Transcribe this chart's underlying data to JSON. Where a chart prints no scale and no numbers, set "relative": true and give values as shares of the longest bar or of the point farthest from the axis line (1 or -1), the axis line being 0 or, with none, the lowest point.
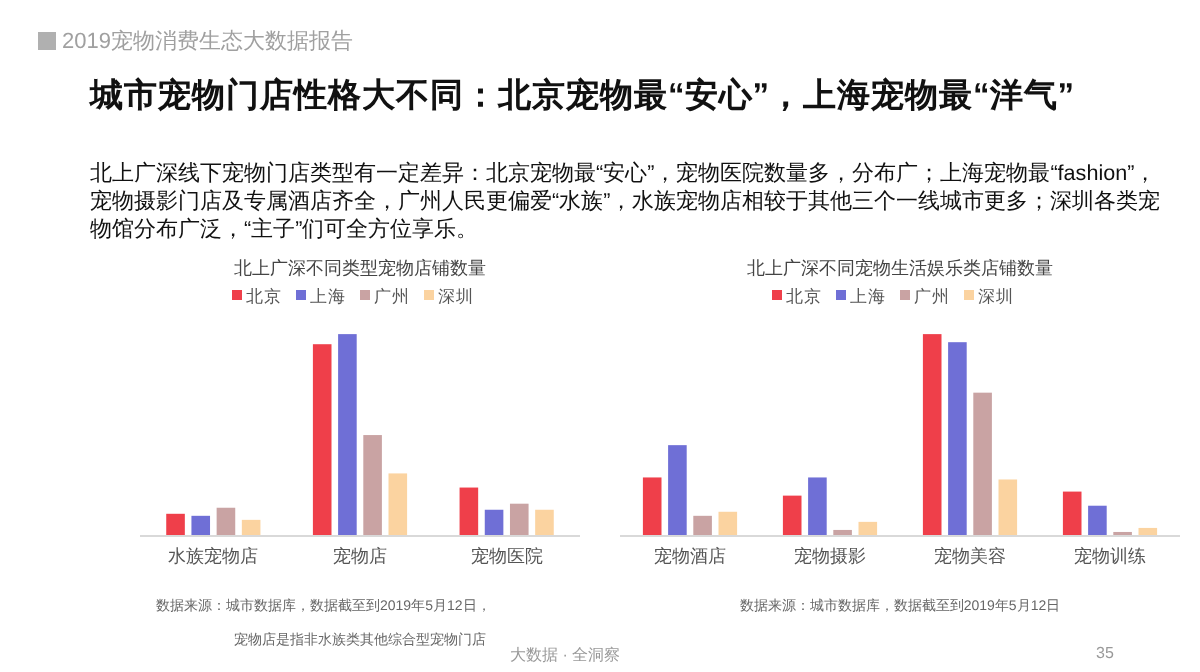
{
  "chart_data": [
    {
      "type": "other",
      "title": "城市宠物门店性格大不同：北京宠物最“安心”，上海宠物最“洋气”",
      "subtitle": "北上广深线下宠物门店类型有一定差异：北京宠物最“安心”，宠物医院数量多，分布广；上海宠物最“fashion”，宠物摄影门店及专属酒店齐全，广州人民更偏爱“水族”，水族宠物店相较于其他三个一线城市更多；深圳各类宠物馆分布广泛，“主子”们可全方位享乐。",
      "annotations": [
        "2019宠物消费生态大数据报告",
        "大数据 · 全洞察",
        "35"
      ]
    },
    {
      "type": "bar",
      "relative": true,
      "title": "北上广深不同类型宠物店铺数量",
      "legend": "top",
      "categories": [
        "水族宠物店",
        "宠物店",
        "宠物医院"
      ],
      "series": [
        {
          "name": "北京",
          "color": "#ef3f4a",
          "values": [
            0.11,
            0.95,
            0.24
          ]
        },
        {
          "name": "上海",
          "color": "#6f6fd6",
          "values": [
            0.1,
            1,
            0.13
          ]
        },
        {
          "name": "广州",
          "color": "#c9a3a3",
          "values": [
            0.14,
            0.5,
            0.16
          ]
        },
        {
          "name": "深圳",
          "color": "#fbd3a0",
          "values": [
            0.08,
            0.31,
            0.13
          ]
        }
      ],
      "annotations": [
        "数据来源：城市数据库，数据截至到2019年5月12日，",
        "宠物店是指非水族类其他综合型宠物门店"
      ]
    },
    {
      "type": "bar",
      "relative": true,
      "title": "北上广深不同宠物生活娱乐类店铺数量",
      "legend": "top",
      "categories": [
        "宠物酒店",
        "宠物摄影",
        "宠物美容",
        "宠物训练"
      ],
      "series": [
        {
          "name": "北京",
          "color": "#ef3f4a",
          "values": [
            0.29,
            0.2,
            1,
            0.22
          ]
        },
        {
          "name": "上海",
          "color": "#6f6fd6",
          "values": [
            0.45,
            0.29,
            0.96,
            0.15
          ]
        },
        {
          "name": "广州",
          "color": "#c9a3a3",
          "values": [
            0.1,
            0.03,
            0.71,
            0.02
          ]
        },
        {
          "name": "深圳",
          "color": "#fbd3a0",
          "values": [
            0.12,
            0.07,
            0.28,
            0.04
          ]
        }
      ],
      "annotations": [
        "数据来源：城市数据库，数据截至到2019年5月12日"
      ]
    }
  ]
}
